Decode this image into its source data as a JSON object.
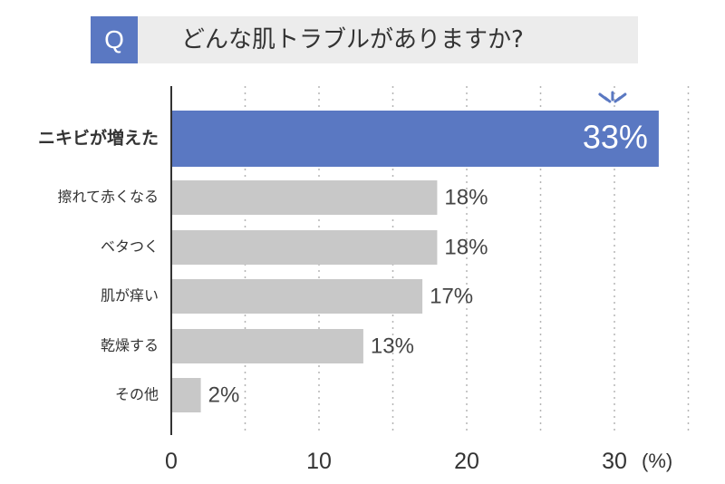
{
  "header": {
    "badge": "Q",
    "question": "どんな肌トラブルがありますか?"
  },
  "colors": {
    "highlight_bar": "#5a78c2",
    "bar": "#c8c8c8",
    "title_bg": "#ececec",
    "badge_bg": "#5a78c2"
  },
  "chart_data": {
    "type": "bar",
    "orientation": "horizontal",
    "title": "どんな肌トラブルがありますか?",
    "categories": [
      "ニキビが増えた",
      "擦れて赤くなる",
      "ベタつく",
      "肌が痒い",
      "乾燥する",
      "その他"
    ],
    "values": [
      33,
      18,
      18,
      17,
      13,
      2
    ],
    "value_labels": [
      "33%",
      "18%",
      "18%",
      "17%",
      "13%",
      "2%"
    ],
    "highlight_index": 0,
    "xlim": [
      0,
      35
    ],
    "xticks": [
      0,
      10,
      20,
      30
    ],
    "xtick_labels": [
      "0",
      "10",
      "20",
      "30"
    ],
    "unit_label": "(%)",
    "grid": "vertical dotted every 5",
    "legend": "none"
  }
}
